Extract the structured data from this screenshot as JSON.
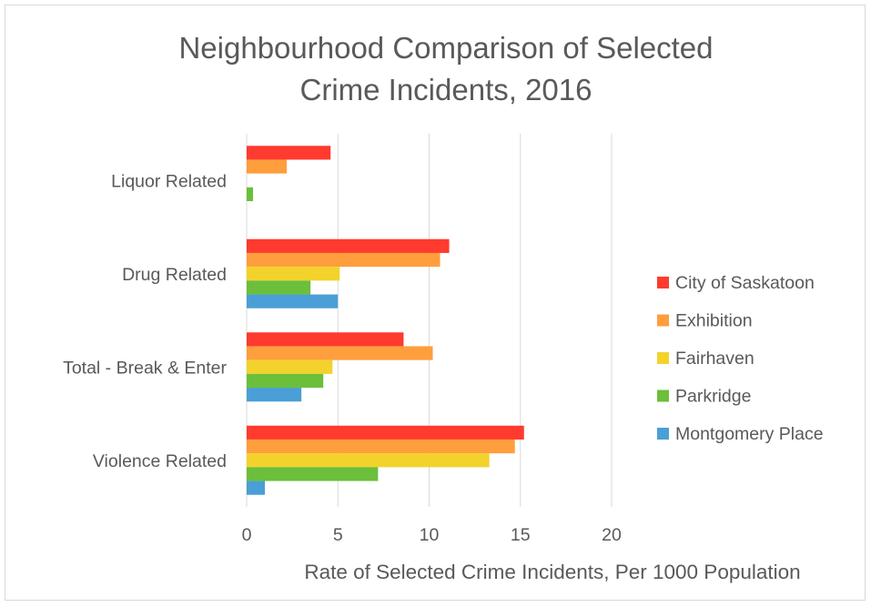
{
  "chart_data": {
    "type": "bar",
    "orientation": "horizontal",
    "title_lines": [
      "Neighbourhood Comparison of Selected",
      "Crime Incidents, 2016"
    ],
    "xlabel": "Rate of Selected Crime Incidents, Per 1000 Population",
    "ylabel": "",
    "xlim": [
      0,
      20
    ],
    "xticks": [
      "0",
      "5",
      "10",
      "15",
      "20"
    ],
    "grid": true,
    "legend_position": "right",
    "categories": [
      "Liquor Related",
      "Drug Related",
      "Total - Break & Enter",
      "Violence Related"
    ],
    "series": [
      {
        "name": "City of Saskatoon",
        "color": "#ff3a2e",
        "values": [
          4.6,
          11.1,
          8.6,
          15.2
        ]
      },
      {
        "name": "Exhibition",
        "color": "#ff9e3c",
        "values": [
          2.2,
          10.6,
          10.2,
          14.7
        ]
      },
      {
        "name": "Fairhaven",
        "color": "#f3d22c",
        "values": [
          0,
          5.1,
          4.7,
          13.3
        ]
      },
      {
        "name": "Parkridge",
        "color": "#6bbf3a",
        "values": [
          0.35,
          3.5,
          4.2,
          7.2
        ]
      },
      {
        "name": "Montgomery Place",
        "color": "#4a9fd6",
        "values": [
          0,
          5.0,
          3.0,
          1.0
        ]
      }
    ]
  }
}
